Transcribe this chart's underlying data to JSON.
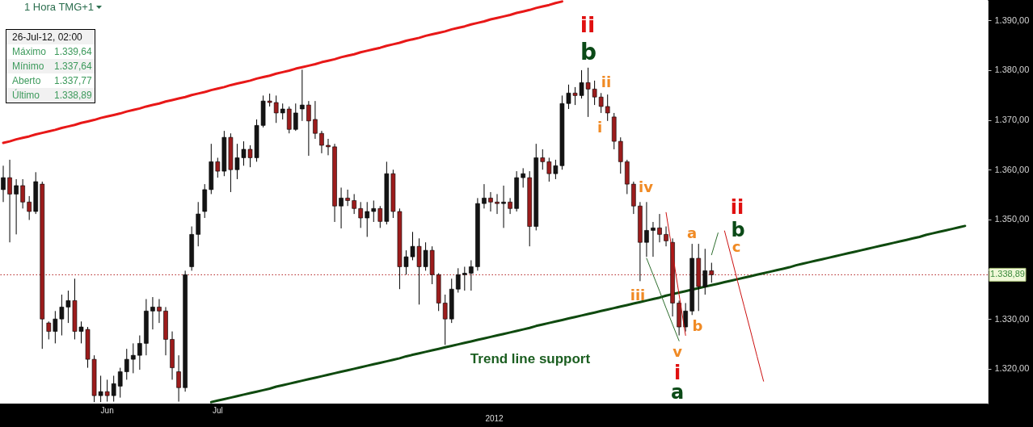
{
  "chart_data": {
    "type": "candlestick",
    "title": "1 Hora TMG+1",
    "xlabel": "2012",
    "categories": [
      null,
      null,
      null,
      null,
      null,
      null,
      null,
      null,
      null,
      null,
      null,
      null,
      null,
      null,
      null,
      null,
      "Jun",
      null,
      null,
      null,
      null,
      null,
      null,
      null,
      null,
      null,
      null,
      null,
      null,
      null,
      null,
      null,
      null,
      "Jul",
      null,
      null,
      null,
      null,
      null,
      null,
      null,
      null,
      null,
      null,
      null,
      null,
      null,
      null,
      null,
      null,
      null,
      null,
      null,
      null,
      null,
      null,
      null,
      null,
      null,
      null,
      null,
      null,
      null,
      null,
      null,
      null,
      null,
      null,
      null,
      null,
      null,
      null,
      null,
      null,
      null,
      null,
      null,
      null,
      null,
      null,
      null,
      null,
      null,
      null,
      null,
      null,
      null,
      null,
      null,
      null,
      null,
      null,
      null,
      null,
      null,
      null,
      null,
      null,
      null,
      null,
      null,
      null,
      null,
      null,
      null,
      null,
      null,
      null,
      null,
      null,
      null,
      null,
      null,
      null,
      null,
      null,
      null,
      null,
      null,
      null,
      null,
      null,
      null,
      null,
      null,
      null,
      null,
      null,
      null,
      null,
      null,
      null,
      null,
      null,
      null,
      null,
      null,
      null,
      null,
      null,
      null,
      null,
      null,
      null,
      null,
      null,
      null,
      null,
      null,
      null,
      null,
      null
    ],
    "ohlc": [
      [
        1356.0,
        1360.8,
        1353.5,
        1358.4
      ],
      [
        1358.4,
        1362.0,
        1345.4,
        1355.1
      ],
      [
        1355.1,
        1358.1,
        1347.0,
        1356.8
      ],
      [
        1356.8,
        1358.1,
        1352.2,
        1353.5
      ],
      [
        1353.5,
        1354.7,
        1349.9,
        1351.6
      ],
      [
        1351.6,
        1359.5,
        1351.1,
        1357.6
      ],
      [
        1357.1,
        1357.6,
        1324.0,
        1330.0
      ],
      [
        1329.2,
        1329.5,
        1325.9,
        1327.5
      ],
      [
        1327.5,
        1331.6,
        1325.1,
        1330.0
      ],
      [
        1330.0,
        1334.9,
        1326.7,
        1332.4
      ],
      [
        1332.4,
        1335.7,
        1329.2,
        1333.7
      ],
      [
        1333.7,
        1338.1,
        1325.9,
        1327.5
      ],
      [
        1327.5,
        1329.5,
        1325.1,
        1328.4
      ],
      [
        1327.9,
        1328.4,
        1320.2,
        1321.9
      ],
      [
        1321.9,
        1322.7,
        1313.3,
        1314.6
      ],
      [
        1314.6,
        1318.6,
        1313.3,
        1315.4
      ],
      [
        1315.4,
        1317.8,
        1313.4,
        1314.6
      ],
      [
        1314.6,
        1318.6,
        1313.4,
        1317.0
      ],
      [
        1316.5,
        1320.2,
        1314.2,
        1319.4
      ],
      [
        1319.4,
        1324.0,
        1317.8,
        1321.9
      ],
      [
        1321.9,
        1325.1,
        1319.1,
        1322.7
      ],
      [
        1322.7,
        1326.7,
        1319.8,
        1325.1
      ],
      [
        1325.1,
        1334.0,
        1322.7,
        1331.6
      ],
      [
        1331.6,
        1334.4,
        1327.9,
        1332.4
      ],
      [
        1332.4,
        1334.0,
        1329.2,
        1331.6
      ],
      [
        1331.6,
        1332.4,
        1322.7,
        1325.9
      ],
      [
        1325.9,
        1327.5,
        1317.8,
        1320.2
      ],
      [
        1319.4,
        1322.7,
        1313.4,
        1316.2
      ],
      [
        1316.2,
        1339.7,
        1315.4,
        1338.9
      ],
      [
        1340.5,
        1348.6,
        1339.7,
        1347.0
      ],
      [
        1347.0,
        1353.5,
        1344.6,
        1351.1
      ],
      [
        1351.6,
        1357.1,
        1350.3,
        1356.0
      ],
      [
        1356.0,
        1365.2,
        1355.1,
        1361.6
      ],
      [
        1361.6,
        1362.4,
        1358.4,
        1359.7
      ],
      [
        1359.7,
        1367.8,
        1358.7,
        1366.5
      ],
      [
        1366.5,
        1367.3,
        1355.5,
        1360.0
      ],
      [
        1360.0,
        1365.2,
        1358.1,
        1362.4
      ],
      [
        1362.4,
        1365.7,
        1360.8,
        1364.1
      ],
      [
        1364.1,
        1364.9,
        1360.5,
        1362.4
      ],
      [
        1362.4,
        1370.1,
        1361.6,
        1368.9
      ],
      [
        1368.9,
        1374.9,
        1368.5,
        1373.8
      ],
      [
        1373.8,
        1375.3,
        1372.7,
        1373.5
      ],
      [
        1373.5,
        1374.9,
        1369.4,
        1371.4
      ],
      [
        1371.4,
        1373.3,
        1370.1,
        1372.2
      ],
      [
        1372.2,
        1372.7,
        1367.3,
        1368.1
      ],
      [
        1368.1,
        1373.3,
        1367.8,
        1371.4
      ],
      [
        1372.2,
        1380.1,
        1369.8,
        1373.0
      ],
      [
        1373.0,
        1373.8,
        1362.8,
        1369.8
      ],
      [
        1370.1,
        1373.8,
        1366.2,
        1367.3
      ],
      [
        1367.3,
        1367.8,
        1363.3,
        1364.9
      ],
      [
        1364.9,
        1366.2,
        1362.9,
        1364.6
      ],
      [
        1364.6,
        1365.2,
        1349.5,
        1352.7
      ],
      [
        1352.7,
        1356.4,
        1348.2,
        1354.3
      ],
      [
        1354.3,
        1356.0,
        1352.7,
        1353.8
      ],
      [
        1353.8,
        1355.1,
        1351.1,
        1352.2
      ],
      [
        1352.2,
        1353.5,
        1348.3,
        1350.3
      ],
      [
        1350.3,
        1353.5,
        1346.5,
        1351.6
      ],
      [
        1351.6,
        1353.8,
        1349.5,
        1352.2
      ],
      [
        1352.2,
        1352.7,
        1348.3,
        1349.6
      ],
      [
        1349.6,
        1361.6,
        1349.0,
        1359.2
      ],
      [
        1359.2,
        1360.0,
        1350.3,
        1351.6
      ],
      [
        1351.6,
        1352.2,
        1336.0,
        1340.5
      ],
      [
        1340.5,
        1343.8,
        1338.9,
        1342.5
      ],
      [
        1342.5,
        1347.5,
        1341.8,
        1344.6
      ],
      [
        1344.6,
        1346.2,
        1332.9,
        1340.5
      ],
      [
        1340.5,
        1345.4,
        1339.7,
        1343.8
      ],
      [
        1343.8,
        1344.6,
        1337.0,
        1338.9
      ],
      [
        1338.9,
        1339.2,
        1331.6,
        1333.2
      ],
      [
        1333.2,
        1334.9,
        1324.8,
        1330.0
      ],
      [
        1330.0,
        1338.1,
        1329.2,
        1336.0
      ],
      [
        1336.0,
        1340.2,
        1335.3,
        1338.9
      ],
      [
        1338.9,
        1340.5,
        1335.7,
        1339.2
      ],
      [
        1339.2,
        1341.8,
        1335.7,
        1340.5
      ],
      [
        1340.5,
        1354.3,
        1339.7,
        1353.2
      ],
      [
        1353.2,
        1357.1,
        1352.2,
        1354.3
      ],
      [
        1354.3,
        1355.5,
        1351.6,
        1353.5
      ],
      [
        1353.5,
        1355.1,
        1351.1,
        1353.2
      ],
      [
        1353.2,
        1356.8,
        1348.3,
        1353.5
      ],
      [
        1353.5,
        1354.3,
        1351.1,
        1352.2
      ],
      [
        1352.2,
        1359.7,
        1351.6,
        1358.4
      ],
      [
        1358.4,
        1360.3,
        1356.4,
        1359.2
      ],
      [
        1358.4,
        1359.7,
        1344.6,
        1348.6
      ],
      [
        1348.6,
        1365.2,
        1347.8,
        1362.4
      ],
      [
        1362.4,
        1364.1,
        1360.0,
        1361.6
      ],
      [
        1361.6,
        1362.4,
        1357.6,
        1359.2
      ],
      [
        1359.2,
        1362.0,
        1358.1,
        1360.8
      ],
      [
        1360.8,
        1374.9,
        1360.0,
        1373.3
      ],
      [
        1373.3,
        1377.1,
        1372.2,
        1375.4
      ],
      [
        1375.4,
        1376.6,
        1373.0,
        1374.9
      ],
      [
        1374.9,
        1380.0,
        1374.3,
        1377.5
      ],
      [
        1377.5,
        1380.5,
        1370.6,
        1376.2
      ],
      [
        1376.2,
        1377.9,
        1373.0,
        1374.6
      ],
      [
        1374.6,
        1375.4,
        1371.4,
        1372.7
      ],
      [
        1372.7,
        1375.1,
        1369.8,
        1371.4
      ],
      [
        1370.6,
        1371.4,
        1364.1,
        1365.7
      ],
      [
        1365.7,
        1366.5,
        1359.2,
        1361.6
      ],
      [
        1361.6,
        1362.0,
        1355.1,
        1357.1
      ],
      [
        1357.1,
        1357.6,
        1351.1,
        1352.7
      ],
      [
        1352.7,
        1353.5,
        1337.6,
        1345.4
      ],
      [
        1345.4,
        1353.5,
        1342.5,
        1347.8
      ],
      [
        1347.8,
        1349.5,
        1342.5,
        1348.3
      ],
      [
        1348.3,
        1351.1,
        1345.4,
        1347.0
      ],
      [
        1347.0,
        1348.6,
        1344.6,
        1345.7
      ],
      [
        1345.4,
        1346.2,
        1330.5,
        1333.2
      ],
      [
        1333.2,
        1333.7,
        1326.7,
        1328.4
      ],
      [
        1328.4,
        1333.2,
        1327.5,
        1331.6
      ],
      [
        1331.6,
        1345.1,
        1330.8,
        1342.2
      ],
      [
        1342.2,
        1345.1,
        1331.6,
        1336.5
      ],
      [
        1336.5,
        1344.1,
        1334.9,
        1339.7
      ],
      [
        1339.7,
        1341.3,
        1337.3,
        1338.89
      ],
      null,
      null,
      null,
      null,
      null,
      null,
      null,
      null,
      null,
      null,
      null,
      null,
      null,
      null,
      null,
      null,
      null,
      null,
      null,
      null,
      null,
      null,
      null,
      null,
      null,
      null,
      null,
      null,
      null,
      null,
      null,
      null,
      null,
      null,
      null,
      null,
      null,
      null,
      null,
      null,
      null,
      null
    ],
    "colors": [
      "#141414",
      "#9c1c1c",
      "#141414",
      "#9c1c1c",
      "#9c1c1c",
      "#141414",
      "#9c1c1c",
      "#9c1c1c",
      "#141414",
      "#141414",
      "#141414",
      "#9c1c1c",
      "#141414",
      "#9c1c1c",
      "#9c1c1c",
      "#141414",
      "#9c1c1c",
      "#141414",
      "#141414",
      "#141414",
      "#141414",
      "#141414",
      "#141414",
      "#141414",
      "#9c1c1c",
      "#9c1c1c",
      "#9c1c1c",
      "#9c1c1c",
      "#141414",
      "#141414",
      "#141414",
      "#141414",
      "#141414",
      "#9c1c1c",
      "#141414",
      "#9c1c1c",
      "#141414",
      "#141414",
      "#9c1c1c",
      "#141414",
      "#141414",
      "#9c1c1c",
      "#9c1c1c",
      "#141414",
      "#9c1c1c",
      "#141414",
      "#141414",
      "#9c1c1c",
      "#9c1c1c",
      "#9c1c1c",
      "#9c1c1c",
      "#9c1c1c",
      "#141414",
      "#9c1c1c",
      "#9c1c1c",
      "#9c1c1c",
      "#141414",
      "#141414",
      "#9c1c1c",
      "#141414",
      "#9c1c1c",
      "#9c1c1c",
      "#141414",
      "#141414",
      "#9c1c1c",
      "#141414",
      "#9c1c1c",
      "#9c1c1c",
      "#9c1c1c",
      "#141414",
      "#141414",
      "#141414",
      "#141414",
      "#141414",
      "#141414",
      "#9c1c1c",
      "#9c1c1c",
      "#141414",
      "#9c1c1c",
      "#141414",
      "#141414",
      "#9c1c1c",
      "#141414",
      "#9c1c1c",
      "#9c1c1c",
      "#141414",
      "#141414",
      "#141414",
      "#9c1c1c",
      "#141414",
      "#9c1c1c",
      "#9c1c1c",
      "#9c1c1c",
      "#9c1c1c",
      "#9c1c1c",
      "#9c1c1c",
      "#9c1c1c",
      "#9c1c1c",
      "#9c1c1c",
      "#141414",
      "#141414",
      "#9c1c1c",
      "#9c1c1c",
      "#9c1c1c",
      "#9c1c1c",
      "#141414",
      "#141414",
      "#9c1c1c",
      "#141414",
      "#9c1c1c",
      null,
      null,
      null,
      null,
      null,
      null,
      null,
      null,
      null,
      null,
      null,
      null,
      null,
      null,
      null,
      null,
      null,
      null,
      null,
      null,
      null,
      null,
      null,
      null,
      null,
      null,
      null,
      null,
      null,
      null,
      null,
      null,
      null,
      null,
      null,
      null,
      null,
      null,
      null,
      null,
      null,
      null
    ],
    "series": [
      {
        "type": "line",
        "color": "#e81818",
        "values": [
          1365.4,
          1365.7,
          1366.1,
          1366.4,
          1366.7,
          1367.1,
          1367.4,
          1367.7,
          1368.0,
          1368.4,
          1368.7,
          1369.0,
          1369.4,
          1369.7,
          1370.0,
          1370.4,
          1370.7,
          1371.0,
          1371.3,
          1371.7,
          1372.0,
          1372.3,
          1372.7,
          1373.0,
          1373.3,
          1373.7,
          1374.0,
          1374.3,
          1374.6,
          1375.0,
          1375.3,
          1375.6,
          1376.0,
          1376.3,
          1376.6,
          1377.0,
          1377.3,
          1377.6,
          1377.9,
          1378.3,
          1378.6,
          1378.9,
          1379.3,
          1379.6,
          1379.9,
          1380.3,
          1380.6,
          1380.9,
          1381.2,
          1381.6,
          1381.9,
          1382.2,
          1382.6,
          1382.9,
          1383.2,
          1383.6,
          1383.9,
          1384.2,
          1384.5,
          1384.9,
          1385.2,
          1385.5,
          1385.9,
          1386.2,
          1386.5,
          1386.9,
          1387.2,
          1387.5,
          1387.8,
          1388.2,
          1388.5,
          1388.8,
          1389.2,
          1389.5,
          1389.8,
          1390.2,
          1390.5,
          1390.8,
          1391.1,
          1391.5,
          1391.8,
          1392.1,
          1392.5,
          1392.8,
          1393.1,
          1393.5,
          1393.8,
          null,
          null,
          null,
          null,
          null,
          null,
          null,
          null,
          null,
          null,
          null,
          null,
          null,
          null,
          null,
          null,
          null,
          null,
          null,
          null,
          null,
          null,
          null,
          null,
          null,
          null,
          null,
          null,
          null,
          null,
          null,
          null,
          null,
          null,
          null,
          null,
          null,
          null,
          null,
          null,
          null,
          null,
          null,
          null,
          null,
          null,
          null,
          null,
          null,
          null,
          null,
          null,
          null,
          null,
          null,
          null,
          null,
          null,
          null,
          null,
          null,
          null,
          null,
          null,
          null
        ]
      },
      {
        "type": "line",
        "color": "#0f4a0f",
        "values": [
          null,
          null,
          null,
          null,
          null,
          null,
          null,
          null,
          null,
          null,
          null,
          null,
          null,
          null,
          null,
          null,
          null,
          null,
          null,
          null,
          null,
          null,
          null,
          null,
          null,
          null,
          null,
          null,
          null,
          null,
          null,
          null,
          1313.3,
          1313.6,
          1313.9,
          1314.2,
          1314.5,
          1314.8,
          1315.1,
          1315.4,
          1315.7,
          1316.0,
          1316.4,
          1316.7,
          1317.0,
          1317.3,
          1317.6,
          1317.9,
          1318.2,
          1318.5,
          1318.8,
          1319.1,
          1319.4,
          1319.7,
          1320.0,
          1320.3,
          1320.6,
          1320.9,
          1321.2,
          1321.5,
          1321.8,
          1322.1,
          1322.5,
          1322.8,
          1323.1,
          1323.4,
          1323.7,
          1324.0,
          1324.3,
          1324.6,
          1324.9,
          1325.2,
          1325.5,
          1325.8,
          1326.1,
          1326.4,
          1326.7,
          1327.0,
          1327.3,
          1327.6,
          1327.9,
          1328.2,
          1328.6,
          1328.9,
          1329.2,
          1329.5,
          1329.8,
          1330.1,
          1330.4,
          1330.7,
          1331.0,
          1331.3,
          1331.6,
          1331.9,
          1332.2,
          1332.5,
          1332.8,
          1333.1,
          1333.4,
          1333.7,
          1334.0,
          1334.3,
          1334.7,
          1335.0,
          1335.3,
          1335.6,
          1335.9,
          1336.2,
          1336.5,
          1336.8,
          1337.1,
          1337.4,
          1337.7,
          1338.0,
          1338.3,
          1338.6,
          1338.9,
          1339.2,
          1339.5,
          1339.8,
          1340.1,
          1340.4,
          1340.8,
          1341.1,
          1341.4,
          1341.7,
          1342.0,
          1342.3,
          1342.6,
          1342.9,
          1343.2,
          1343.5,
          1343.8,
          1344.1,
          1344.4,
          1344.7,
          1345.0,
          1345.3,
          1345.6,
          1345.9,
          1346.2,
          1346.5,
          1346.9,
          1347.2,
          1347.5,
          1347.8,
          1348.1,
          1348.4,
          1348.7,
          null,
          null,
          null
        ]
      },
      {
        "type": "line",
        "color": "#2e6e2e",
        "values": [
          null,
          null,
          null,
          null,
          null,
          null,
          null,
          null,
          null,
          null,
          null,
          null,
          null,
          null,
          null,
          null,
          null,
          null,
          null,
          null,
          null,
          null,
          null,
          null,
          null,
          null,
          null,
          null,
          null,
          null,
          null,
          null,
          null,
          null,
          null,
          null,
          null,
          null,
          null,
          null,
          null,
          null,
          null,
          null,
          null,
          null,
          null,
          null,
          null,
          null,
          null,
          null,
          null,
          null,
          null,
          null,
          null,
          null,
          null,
          null,
          null,
          null,
          null,
          null,
          null,
          null,
          null,
          null,
          null,
          null,
          null,
          null,
          null,
          null,
          null,
          null,
          null,
          null,
          null,
          null,
          null,
          null,
          null,
          null,
          null,
          null,
          null,
          null,
          null,
          null,
          null,
          null,
          null,
          null,
          null,
          null,
          null,
          null,
          null,
          1342.2,
          1338.9,
          1335.6,
          1332.2,
          1328.9,
          1325.6,
          null,
          null,
          null,
          null,
          null,
          null,
          null,
          null,
          null,
          null,
          null,
          null,
          null,
          null,
          null,
          null,
          null,
          null,
          null,
          null,
          null,
          null,
          null,
          null,
          null,
          null,
          null,
          null,
          null,
          null,
          null,
          null,
          null,
          null,
          null,
          null,
          null,
          null,
          null,
          null,
          null,
          null,
          null,
          null,
          null,
          null,
          null
        ]
      },
      {
        "type": "line",
        "color": "#cc1010",
        "values": [
          null,
          null,
          null,
          null,
          null,
          null,
          null,
          null,
          null,
          null,
          null,
          null,
          null,
          null,
          null,
          null,
          null,
          null,
          null,
          null,
          null,
          null,
          null,
          null,
          null,
          null,
          null,
          null,
          null,
          null,
          null,
          null,
          null,
          null,
          null,
          null,
          null,
          null,
          null,
          null,
          null,
          null,
          null,
          null,
          null,
          null,
          null,
          null,
          null,
          null,
          null,
          null,
          null,
          null,
          null,
          null,
          null,
          null,
          null,
          null,
          null,
          null,
          null,
          null,
          null,
          null,
          null,
          null,
          null,
          null,
          null,
          null,
          null,
          null,
          null,
          null,
          null,
          null,
          null,
          null,
          null,
          null,
          null,
          null,
          null,
          null,
          null,
          null,
          null,
          null,
          null,
          null,
          null,
          null,
          null,
          null,
          null,
          null,
          null,
          null,
          null,
          null,
          1351.4,
          1343.2,
          1334.9,
          1326.7,
          null,
          null,
          null,
          null,
          null,
          null,
          null,
          null,
          null,
          null,
          null,
          null,
          null,
          null,
          null,
          null,
          null,
          null,
          null,
          null,
          null,
          null,
          null,
          null,
          null,
          null,
          null,
          null,
          null,
          null,
          null,
          null,
          null,
          null,
          null,
          null,
          null,
          null,
          null,
          null,
          null,
          null,
          null,
          null,
          null,
          null
        ]
      },
      {
        "type": "line",
        "color": "#2e6e2e",
        "values": [
          null,
          null,
          null,
          null,
          null,
          null,
          null,
          null,
          null,
          null,
          null,
          null,
          null,
          null,
          null,
          null,
          null,
          null,
          null,
          null,
          null,
          null,
          null,
          null,
          null,
          null,
          null,
          null,
          null,
          null,
          null,
          null,
          null,
          null,
          null,
          null,
          null,
          null,
          null,
          null,
          null,
          null,
          null,
          null,
          null,
          null,
          null,
          null,
          null,
          null,
          null,
          null,
          null,
          null,
          null,
          null,
          null,
          null,
          null,
          null,
          null,
          null,
          null,
          null,
          null,
          null,
          null,
          null,
          null,
          null,
          null,
          null,
          null,
          null,
          null,
          null,
          null,
          null,
          null,
          null,
          null,
          null,
          null,
          null,
          null,
          null,
          null,
          null,
          null,
          null,
          null,
          null,
          null,
          null,
          null,
          null,
          null,
          null,
          null,
          null,
          null,
          null,
          null,
          null,
          null,
          null,
          null,
          null,
          null,
          1342.9,
          1347.3,
          null,
          null,
          null,
          null,
          null,
          null,
          null,
          null,
          null,
          null,
          null,
          null,
          null,
          null,
          null,
          null,
          null,
          null,
          null,
          null,
          null,
          null,
          null,
          null,
          null,
          null,
          null,
          null,
          null,
          null,
          null,
          null,
          null,
          null,
          null,
          null,
          null,
          null,
          null,
          null,
          null
        ]
      },
      {
        "type": "line",
        "color": "#cc1010",
        "values": [
          null,
          null,
          null,
          null,
          null,
          null,
          null,
          null,
          null,
          null,
          null,
          null,
          null,
          null,
          null,
          null,
          null,
          null,
          null,
          null,
          null,
          null,
          null,
          null,
          null,
          null,
          null,
          null,
          null,
          null,
          null,
          null,
          null,
          null,
          null,
          null,
          null,
          null,
          null,
          null,
          null,
          null,
          null,
          null,
          null,
          null,
          null,
          null,
          null,
          null,
          null,
          null,
          null,
          null,
          null,
          null,
          null,
          null,
          null,
          null,
          null,
          null,
          null,
          null,
          null,
          null,
          null,
          null,
          null,
          null,
          null,
          null,
          null,
          null,
          null,
          null,
          null,
          null,
          null,
          null,
          null,
          null,
          null,
          null,
          null,
          null,
          null,
          null,
          null,
          null,
          null,
          null,
          null,
          null,
          null,
          null,
          null,
          null,
          null,
          null,
          null,
          null,
          null,
          null,
          null,
          null,
          null,
          null,
          null,
          null,
          null,
          1347.7,
          1342.7,
          1337.6,
          1332.6,
          1327.6,
          1322.5,
          1317.5,
          null,
          null,
          null,
          null,
          null,
          null,
          null,
          null,
          null,
          null,
          null,
          null,
          null,
          null,
          null,
          null,
          null,
          null,
          null,
          null,
          null,
          null,
          null,
          null,
          null,
          null,
          null,
          null,
          null,
          null,
          null,
          null,
          null,
          null
        ]
      }
    ],
    "ylim": [
      1313,
      1394.1
    ],
    "yticks": [
      {
        "value": 1320,
        "label": "1.320,00"
      },
      {
        "value": 1330,
        "label": "1.330,00"
      },
      {
        "value": 1340,
        "label": null
      },
      {
        "value": 1350,
        "label": "1.350,00"
      },
      {
        "value": 1360,
        "label": "1.360,00"
      },
      {
        "value": 1370,
        "label": "1.370,00"
      },
      {
        "value": 1380,
        "label": "1.380,00"
      },
      {
        "value": 1390,
        "label": "1.390,00"
      }
    ],
    "ref_lines": [
      {
        "axis": "y",
        "value": 1338.89,
        "label": "1.338,89",
        "color": "#b01c1c",
        "line_style": "dotted"
      }
    ],
    "annotations": [
      "26-Jul-12, 02:00",
      "Máximo",
      "1.339,64",
      "Mínimo",
      "1.337,64",
      "Aberto",
      "1.337,77",
      "Último",
      "1.338,89",
      "ii",
      "b",
      "ii",
      "i",
      "iv",
      "iii",
      "a",
      "b",
      "v",
      "i",
      "a",
      "ii",
      "b",
      "c",
      "Trend line support"
    ]
  }
}
